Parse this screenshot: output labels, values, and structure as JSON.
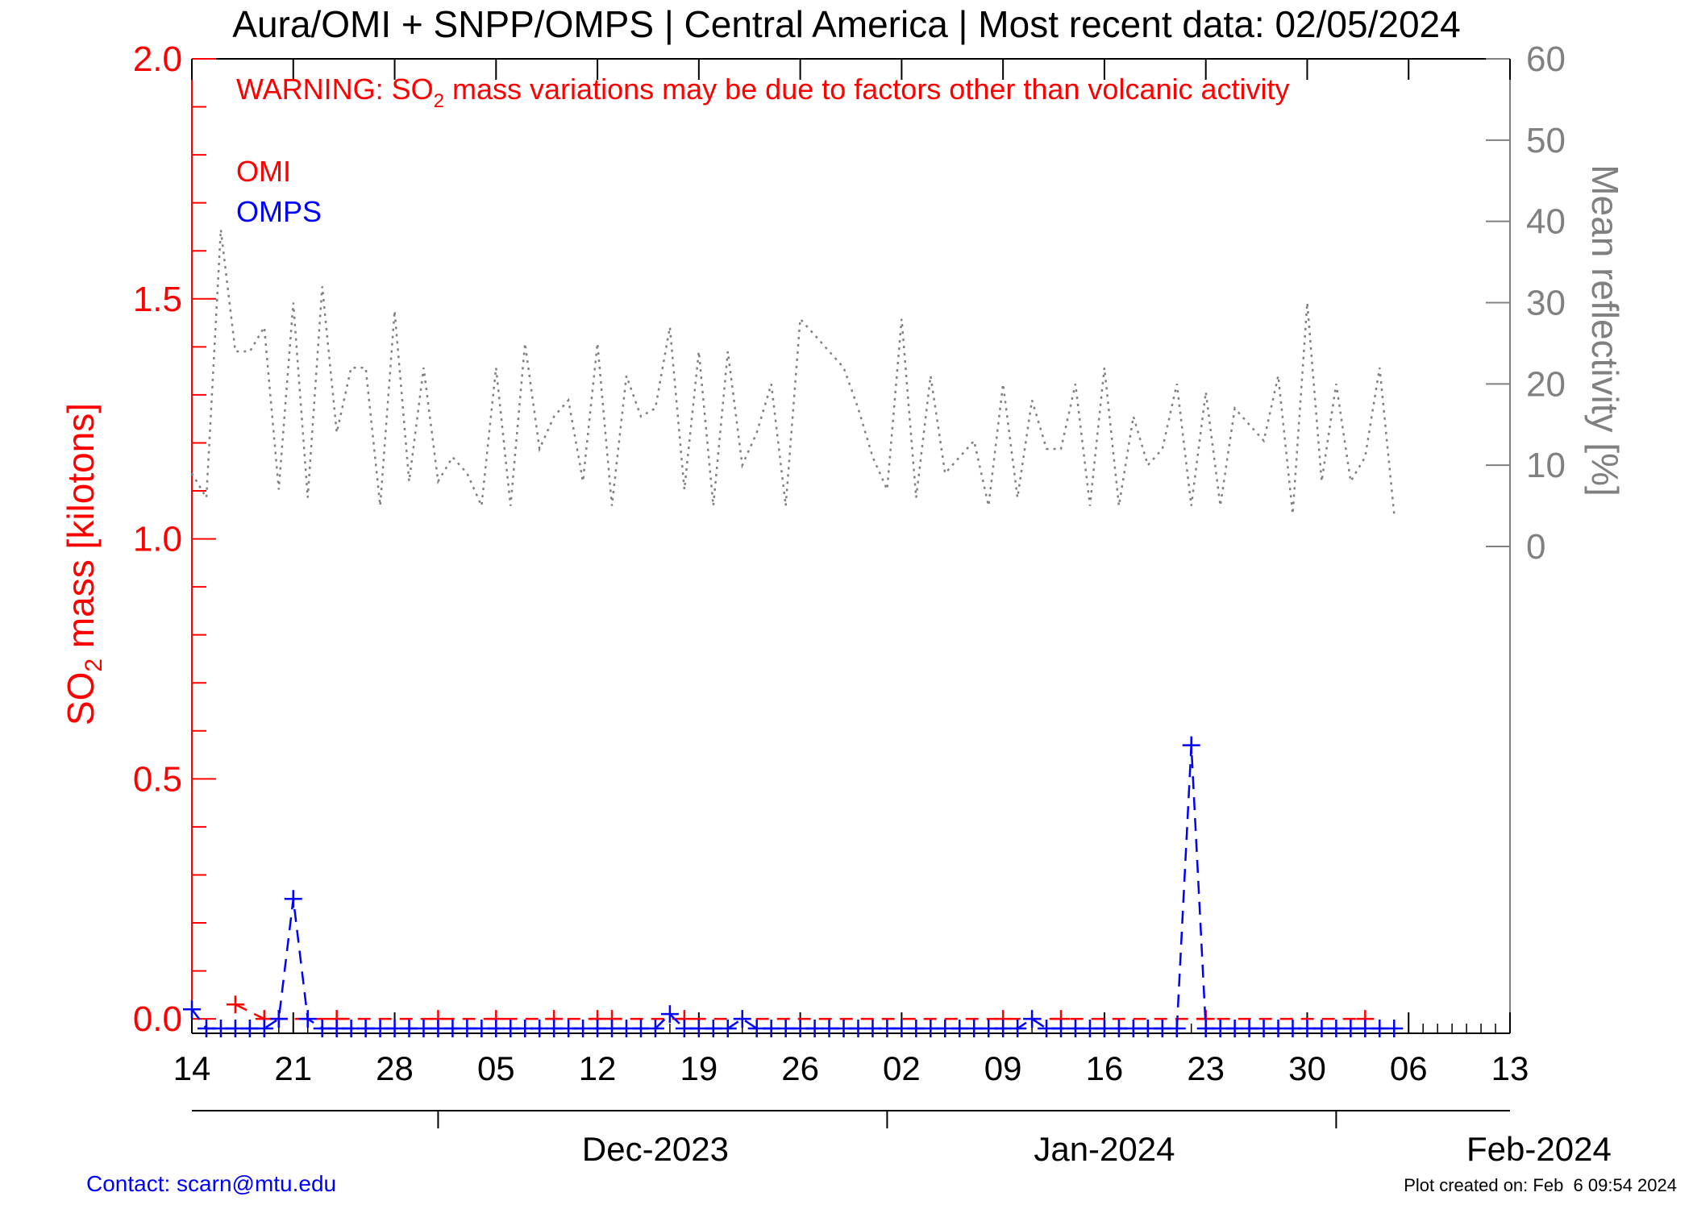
{
  "chart_data": {
    "type": "line",
    "title": "Aura/OMI + SNPP/OMPS | Central America | Most recent data: 02/05/2024",
    "warning": {
      "prefix": "WARNING: SO",
      "sub": "2",
      "suffix": " mass variations may be due to factors other than volcanic activity"
    },
    "ylabel_left": {
      "prefix": "SO",
      "sub": "2",
      "suffix": " mass [kilotons]"
    },
    "ylabel_right": "Mean reflectivity [%]",
    "x_range": [
      "2023-11-14",
      "2024-02-13"
    ],
    "x_tick_labels": [
      "14",
      "21",
      "28",
      "05",
      "12",
      "19",
      "26",
      "02",
      "09",
      "16",
      "23",
      "30",
      "06",
      "13"
    ],
    "x_tick_dates": [
      "2023-11-14",
      "2023-11-21",
      "2023-11-28",
      "2023-12-05",
      "2023-12-12",
      "2023-12-19",
      "2023-12-26",
      "2024-01-02",
      "2024-01-09",
      "2024-01-16",
      "2024-01-23",
      "2024-01-30",
      "2024-02-06",
      "2024-02-13"
    ],
    "months": [
      {
        "label": "Dec-2023",
        "center": "2023-12-16",
        "start": "2023-12-01"
      },
      {
        "label": "Jan-2024",
        "center": "2024-01-16",
        "start": "2024-01-01"
      },
      {
        "label": "Feb-2024",
        "center": "2024-02-15",
        "start": "2024-02-01"
      }
    ],
    "y_left": {
      "range": [
        -0.03,
        2.0
      ],
      "ticks": [
        0.0,
        0.5,
        1.0,
        1.5,
        2.0
      ],
      "tick_labels": [
        "0.0",
        "0.5",
        "1.0",
        "1.5",
        "2.0"
      ]
    },
    "y_right": {
      "range": [
        0,
        60
      ],
      "ticks": [
        0,
        10,
        20,
        30,
        40,
        50,
        60
      ],
      "tick_labels": [
        "0",
        "10",
        "20",
        "30",
        "40",
        "50",
        "60"
      ]
    },
    "colors": {
      "omi": "#ff0000",
      "omps": "#0000ff",
      "reflectivity": "#808080",
      "axis": "#000000"
    },
    "series": [
      {
        "name": "OMI",
        "color": "#ff0000",
        "style": "dashed-plus",
        "points": [
          [
            "2023-11-17",
            0.03
          ],
          [
            "2023-11-19",
            0.0
          ],
          [
            "2023-11-20",
            0.0
          ],
          [
            "2023-11-24",
            0.0
          ],
          [
            "2023-12-01",
            0.0
          ],
          [
            "2023-12-05",
            0.0
          ],
          [
            "2023-12-09",
            0.0
          ],
          [
            "2023-12-12",
            0.0
          ],
          [
            "2023-12-13",
            0.0
          ],
          [
            "2023-12-18",
            0.0
          ],
          [
            "2024-01-09",
            0.0
          ],
          [
            "2024-01-13",
            0.0
          ],
          [
            "2024-01-23",
            0.0
          ],
          [
            "2024-02-03",
            0.0
          ]
        ]
      },
      {
        "name": "OMPS",
        "color": "#0000ff",
        "style": "dashed-plus",
        "points": [
          [
            "2023-11-14",
            0.02
          ],
          [
            "2023-11-15",
            -0.02
          ],
          [
            "2023-11-16",
            -0.02
          ],
          [
            "2023-11-17",
            -0.02
          ],
          [
            "2023-11-18",
            -0.02
          ],
          [
            "2023-11-19",
            -0.02
          ],
          [
            "2023-11-20",
            0.0
          ],
          [
            "2023-11-21",
            0.25
          ],
          [
            "2023-11-22",
            0.0
          ],
          [
            "2023-11-23",
            -0.02
          ],
          [
            "2023-11-24",
            -0.02
          ],
          [
            "2023-11-25",
            -0.02
          ],
          [
            "2023-11-26",
            -0.02
          ],
          [
            "2023-11-27",
            -0.02
          ],
          [
            "2023-11-28",
            -0.02
          ],
          [
            "2023-11-29",
            -0.02
          ],
          [
            "2023-11-30",
            -0.02
          ],
          [
            "2023-12-01",
            -0.02
          ],
          [
            "2023-12-02",
            -0.02
          ],
          [
            "2023-12-03",
            -0.02
          ],
          [
            "2023-12-04",
            -0.02
          ],
          [
            "2023-12-05",
            -0.02
          ],
          [
            "2023-12-06",
            -0.02
          ],
          [
            "2023-12-07",
            -0.02
          ],
          [
            "2023-12-08",
            -0.02
          ],
          [
            "2023-12-09",
            -0.02
          ],
          [
            "2023-12-10",
            -0.02
          ],
          [
            "2023-12-11",
            -0.02
          ],
          [
            "2023-12-12",
            -0.02
          ],
          [
            "2023-12-13",
            -0.02
          ],
          [
            "2023-12-14",
            -0.02
          ],
          [
            "2023-12-15",
            -0.02
          ],
          [
            "2023-12-16",
            -0.02
          ],
          [
            "2023-12-17",
            0.01
          ],
          [
            "2023-12-18",
            -0.02
          ],
          [
            "2023-12-19",
            -0.02
          ],
          [
            "2023-12-20",
            -0.02
          ],
          [
            "2023-12-21",
            -0.02
          ],
          [
            "2023-12-22",
            0.0
          ],
          [
            "2023-12-23",
            -0.02
          ],
          [
            "2023-12-24",
            -0.02
          ],
          [
            "2023-12-25",
            -0.02
          ],
          [
            "2023-12-26",
            -0.02
          ],
          [
            "2023-12-27",
            -0.02
          ],
          [
            "2023-12-28",
            -0.02
          ],
          [
            "2023-12-29",
            -0.02
          ],
          [
            "2023-12-30",
            -0.02
          ],
          [
            "2023-12-31",
            -0.02
          ],
          [
            "2024-01-01",
            -0.02
          ],
          [
            "2024-01-02",
            -0.02
          ],
          [
            "2024-01-03",
            -0.02
          ],
          [
            "2024-01-04",
            -0.02
          ],
          [
            "2024-01-05",
            -0.02
          ],
          [
            "2024-01-06",
            -0.02
          ],
          [
            "2024-01-07",
            -0.02
          ],
          [
            "2024-01-08",
            -0.02
          ],
          [
            "2024-01-09",
            -0.02
          ],
          [
            "2024-01-10",
            -0.02
          ],
          [
            "2024-01-11",
            0.0
          ],
          [
            "2024-01-12",
            -0.02
          ],
          [
            "2024-01-13",
            -0.02
          ],
          [
            "2024-01-14",
            -0.02
          ],
          [
            "2024-01-15",
            -0.02
          ],
          [
            "2024-01-16",
            -0.02
          ],
          [
            "2024-01-17",
            -0.02
          ],
          [
            "2024-01-18",
            -0.02
          ],
          [
            "2024-01-19",
            -0.02
          ],
          [
            "2024-01-20",
            -0.02
          ],
          [
            "2024-01-21",
            -0.02
          ],
          [
            "2024-01-22",
            0.57
          ],
          [
            "2024-01-23",
            -0.02
          ],
          [
            "2024-01-24",
            -0.02
          ],
          [
            "2024-01-25",
            -0.02
          ],
          [
            "2024-01-26",
            -0.02
          ],
          [
            "2024-01-27",
            -0.02
          ],
          [
            "2024-01-28",
            -0.02
          ],
          [
            "2024-01-29",
            -0.02
          ],
          [
            "2024-01-30",
            -0.02
          ],
          [
            "2024-01-31",
            -0.02
          ],
          [
            "2024-02-01",
            -0.02
          ],
          [
            "2024-02-02",
            -0.02
          ],
          [
            "2024-02-03",
            -0.02
          ],
          [
            "2024-02-04",
            -0.02
          ],
          [
            "2024-02-05",
            -0.02
          ]
        ]
      },
      {
        "name": "Mean reflectivity",
        "axis": "right",
        "color": "#808080",
        "style": "dotted",
        "points": [
          [
            "2023-11-14",
            9
          ],
          [
            "2023-11-15",
            6
          ],
          [
            "2023-11-16",
            39
          ],
          [
            "2023-11-17",
            24
          ],
          [
            "2023-11-18",
            24
          ],
          [
            "2023-11-19",
            27
          ],
          [
            "2023-11-20",
            7
          ],
          [
            "2023-11-21",
            30
          ],
          [
            "2023-11-22",
            6
          ],
          [
            "2023-11-23",
            32
          ],
          [
            "2023-11-24",
            14
          ],
          [
            "2023-11-25",
            22
          ],
          [
            "2023-11-26",
            22
          ],
          [
            "2023-11-27",
            5
          ],
          [
            "2023-11-28",
            29
          ],
          [
            "2023-11-29",
            8
          ],
          [
            "2023-11-30",
            22
          ],
          [
            "2023-12-01",
            8
          ],
          [
            "2023-12-02",
            11
          ],
          [
            "2023-12-03",
            9
          ],
          [
            "2023-12-04",
            5
          ],
          [
            "2023-12-05",
            22
          ],
          [
            "2023-12-06",
            5
          ],
          [
            "2023-12-07",
            25
          ],
          [
            "2023-12-08",
            12
          ],
          [
            "2023-12-09",
            16
          ],
          [
            "2023-12-10",
            18
          ],
          [
            "2023-12-11",
            8
          ],
          [
            "2023-12-12",
            25
          ],
          [
            "2023-12-13",
            5
          ],
          [
            "2023-12-14",
            21
          ],
          [
            "2023-12-15",
            16
          ],
          [
            "2023-12-16",
            17
          ],
          [
            "2023-12-17",
            27
          ],
          [
            "2023-12-18",
            7
          ],
          [
            "2023-12-19",
            24
          ],
          [
            "2023-12-20",
            5
          ],
          [
            "2023-12-21",
            24
          ],
          [
            "2023-12-22",
            10
          ],
          [
            "2023-12-23",
            14
          ],
          [
            "2023-12-24",
            20
          ],
          [
            "2023-12-25",
            5
          ],
          [
            "2023-12-26",
            28
          ],
          [
            "2023-12-27",
            26
          ],
          [
            "2023-12-28",
            24
          ],
          [
            "2023-12-29",
            22
          ],
          [
            "2023-12-30",
            17
          ],
          [
            "2023-12-31",
            11
          ],
          [
            "2024-01-01",
            7
          ],
          [
            "2024-01-02",
            28
          ],
          [
            "2024-01-03",
            6
          ],
          [
            "2024-01-04",
            21
          ],
          [
            "2024-01-05",
            9
          ],
          [
            "2024-01-06",
            11
          ],
          [
            "2024-01-07",
            13
          ],
          [
            "2024-01-08",
            5
          ],
          [
            "2024-01-09",
            20
          ],
          [
            "2024-01-10",
            6
          ],
          [
            "2024-01-11",
            18
          ],
          [
            "2024-01-12",
            12
          ],
          [
            "2024-01-13",
            12
          ],
          [
            "2024-01-14",
            20
          ],
          [
            "2024-01-15",
            5
          ],
          [
            "2024-01-16",
            22
          ],
          [
            "2024-01-17",
            5
          ],
          [
            "2024-01-18",
            16
          ],
          [
            "2024-01-19",
            10
          ],
          [
            "2024-01-20",
            12
          ],
          [
            "2024-01-21",
            20
          ],
          [
            "2024-01-22",
            5
          ],
          [
            "2024-01-23",
            19
          ],
          [
            "2024-01-24",
            5
          ],
          [
            "2024-01-25",
            17
          ],
          [
            "2024-01-26",
            15
          ],
          [
            "2024-01-27",
            13
          ],
          [
            "2024-01-28",
            21
          ],
          [
            "2024-01-29",
            4
          ],
          [
            "2024-01-30",
            30
          ],
          [
            "2024-01-31",
            8
          ],
          [
            "2024-02-01",
            20
          ],
          [
            "2024-02-02",
            8
          ],
          [
            "2024-02-03",
            11
          ],
          [
            "2024-02-04",
            22
          ],
          [
            "2024-02-05",
            4
          ]
        ]
      }
    ],
    "legend": [
      "OMI",
      "OMPS"
    ],
    "legend_placement": "top-left",
    "grid": false
  },
  "footer": {
    "contact": "Contact: scarn@mtu.edu",
    "created": "Plot created on: Feb  6 09:54 2024"
  }
}
